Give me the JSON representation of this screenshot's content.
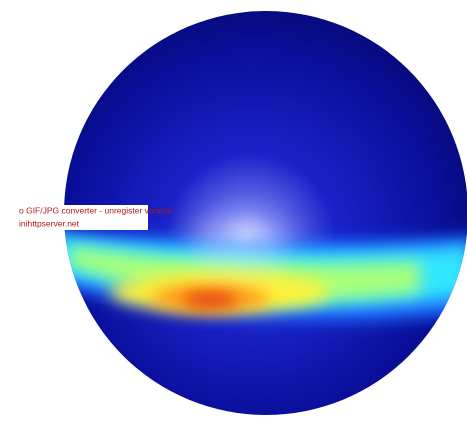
{
  "watermark": {
    "line1": "o GIF/JPG converter - unregister version",
    "line2": "inihttpserver.net"
  }
}
